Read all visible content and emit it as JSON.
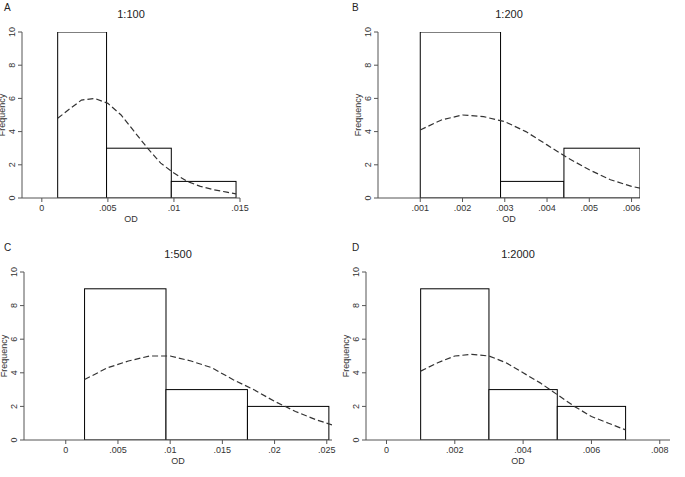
{
  "chart_data": [
    {
      "type": "histogram",
      "title": "1:100",
      "annotations": [
        "A"
      ],
      "x_label": "OD",
      "y_label": "Frequency",
      "bins": [
        0.0012,
        0.0049,
        0.0098,
        0.0147
      ],
      "values": [
        10,
        3,
        1
      ],
      "color": "#ffffff",
      "series": [
        {
          "type": "line",
          "line_style": "dashed",
          "color": "#333333",
          "x": [
            0.0012,
            0.002,
            0.003,
            0.004,
            0.005,
            0.006,
            0.007,
            0.008,
            0.009,
            0.01,
            0.011,
            0.012,
            0.013,
            0.014,
            0.0147
          ],
          "values": [
            4.8,
            5.3,
            5.9,
            6.0,
            5.7,
            5.0,
            4.0,
            3.0,
            2.1,
            1.5,
            1.0,
            0.7,
            0.5,
            0.35,
            0.25
          ]
        }
      ],
      "xlim": [
        -0.0015,
        0.015
      ],
      "xticks": [
        0,
        {
          "value": 0.005,
          "label": ".005"
        },
        {
          "value": 0.01,
          "label": ".01"
        },
        {
          "value": 0.015,
          "label": ".015"
        }
      ],
      "ylim": [
        0,
        10
      ],
      "yticks": [
        0,
        2,
        4,
        6,
        8,
        10
      ],
      "grid": false
    },
    {
      "type": "histogram",
      "title": "1:200",
      "annotations": [
        "B"
      ],
      "x_label": "OD",
      "y_label": "Frequency",
      "bins": [
        0.001,
        0.0029,
        0.0044,
        0.0062
      ],
      "values": [
        10,
        1,
        3
      ],
      "color": "#ffffff",
      "series": [
        {
          "type": "line",
          "line_style": "dashed",
          "color": "#333333",
          "x": [
            0.001,
            0.0015,
            0.002,
            0.0025,
            0.003,
            0.0035,
            0.004,
            0.0045,
            0.005,
            0.0055,
            0.006,
            0.0062
          ],
          "values": [
            4.1,
            4.7,
            5.0,
            4.9,
            4.6,
            4.0,
            3.2,
            2.4,
            1.7,
            1.1,
            0.7,
            0.6
          ]
        }
      ],
      "xlim": [
        0,
        0.0062
      ],
      "xticks": [
        {
          "value": 0.001,
          "label": ".001"
        },
        {
          "value": 0.002,
          "label": ".002"
        },
        {
          "value": 0.003,
          "label": ".003"
        },
        {
          "value": 0.004,
          "label": ".004"
        },
        {
          "value": 0.005,
          "label": ".005"
        },
        {
          "value": 0.006,
          "label": ".006"
        }
      ],
      "ylim": [
        0,
        10
      ],
      "yticks": [
        0,
        2,
        4,
        6,
        8,
        10
      ],
      "grid": false
    },
    {
      "type": "histogram",
      "title": "1:500",
      "annotations": [
        "C"
      ],
      "x_label": "OD",
      "y_label": "Frequency",
      "bins": [
        0.0018,
        0.0096,
        0.0174,
        0.0252
      ],
      "values": [
        9,
        3,
        2
      ],
      "color": "#ffffff",
      "series": [
        {
          "type": "line",
          "line_style": "dashed",
          "color": "#333333",
          "x": [
            0.0018,
            0.004,
            0.006,
            0.008,
            0.01,
            0.012,
            0.014,
            0.016,
            0.018,
            0.02,
            0.022,
            0.024,
            0.0255
          ],
          "values": [
            3.6,
            4.3,
            4.7,
            5.0,
            5.0,
            4.7,
            4.3,
            3.6,
            3.0,
            2.3,
            1.7,
            1.2,
            0.9
          ]
        }
      ],
      "xlim": [
        -0.004,
        0.0255
      ],
      "xticks": [
        0,
        {
          "value": 0.005,
          "label": ".005"
        },
        {
          "value": 0.01,
          "label": ".01"
        },
        {
          "value": 0.015,
          "label": ".015"
        },
        {
          "value": 0.02,
          "label": ".02"
        },
        {
          "value": 0.025,
          "label": ".025"
        }
      ],
      "ylim": [
        0,
        10
      ],
      "yticks": [
        0,
        2,
        4,
        6,
        8,
        10
      ],
      "grid": false
    },
    {
      "type": "histogram",
      "title": "1:2000",
      "annotations": [
        "D"
      ],
      "x_label": "OD",
      "y_label": "Frequency",
      "bins": [
        0.001,
        0.003,
        0.005,
        0.007
      ],
      "values": [
        9,
        3,
        2
      ],
      "color": "#ffffff",
      "series": [
        {
          "type": "line",
          "line_style": "dashed",
          "color": "#333333",
          "x": [
            0.001,
            0.0015,
            0.002,
            0.0025,
            0.003,
            0.0035,
            0.004,
            0.0045,
            0.005,
            0.0055,
            0.006,
            0.0065,
            0.007
          ],
          "values": [
            4.1,
            4.6,
            5.0,
            5.1,
            5.0,
            4.6,
            4.0,
            3.4,
            2.7,
            2.0,
            1.4,
            1.0,
            0.6
          ]
        }
      ],
      "xlim": [
        -0.0006,
        0.0083
      ],
      "xticks": [
        0,
        {
          "value": 0.002,
          "label": ".002"
        },
        {
          "value": 0.004,
          "label": ".004"
        },
        {
          "value": 0.006,
          "label": ".006"
        },
        {
          "value": 0.008,
          "label": ".008"
        }
      ],
      "ylim": [
        0,
        10
      ],
      "yticks": [
        0,
        2,
        4,
        6,
        8,
        10
      ],
      "grid": false
    }
  ]
}
